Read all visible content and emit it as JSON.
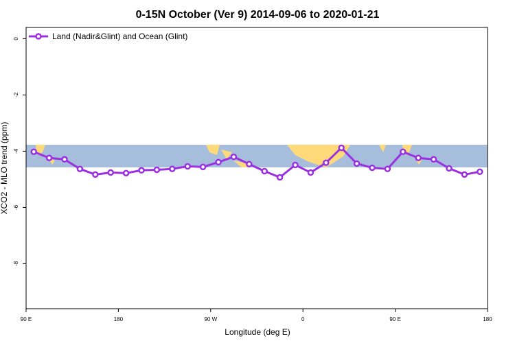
{
  "chart_data": {
    "type": "line",
    "title": "0-15N October (Ver 9)   2014-09-06 to 2020-01-21",
    "x_label": "Longitude (deg E)",
    "y_label": "XCO2 - MLO trend (ppm)",
    "xlim": [
      90,
      540
    ],
    "xticks": [
      {
        "value": 90,
        "label": "90 E"
      },
      {
        "value": 180,
        "label": "180"
      },
      {
        "value": 270,
        "label": "90 W"
      },
      {
        "value": 360,
        "label": "0"
      },
      {
        "value": 450,
        "label": "90 E"
      },
      {
        "value": 540,
        "label": "180"
      }
    ],
    "ylim": [
      -9.6,
      0.4
    ],
    "yticks": [
      0,
      -2,
      -4,
      -6,
      -8
    ],
    "legend_position": "top-left",
    "x": [
      97.5,
      112.5,
      127.5,
      142.5,
      157.5,
      172.5,
      187.5,
      202.5,
      217.5,
      232.5,
      247.5,
      262.5,
      277.5,
      292.5,
      307.5,
      322.5,
      337.5,
      352.5,
      367.5,
      382.5,
      397.5,
      412.5,
      427.5,
      442.5,
      457.5,
      472.5,
      487.5,
      502.5,
      517.5,
      532.5
    ],
    "series": [
      {
        "name": "Land (Nadir&Glint) and Ocean (Glint)",
        "color": "#9b30e0",
        "values": [
          -4.02,
          -4.24,
          -4.29,
          -4.63,
          -4.83,
          -4.76,
          -4.78,
          -4.68,
          -4.66,
          -4.63,
          -4.54,
          -4.56,
          -4.39,
          -4.2,
          -4.46,
          -4.71,
          -4.93,
          -4.49,
          -4.76,
          -4.41,
          -3.88,
          -4.44,
          -4.59,
          -4.63,
          -4.02,
          -4.24,
          -4.29,
          -4.61,
          -4.83,
          -4.73
        ]
      }
    ]
  }
}
